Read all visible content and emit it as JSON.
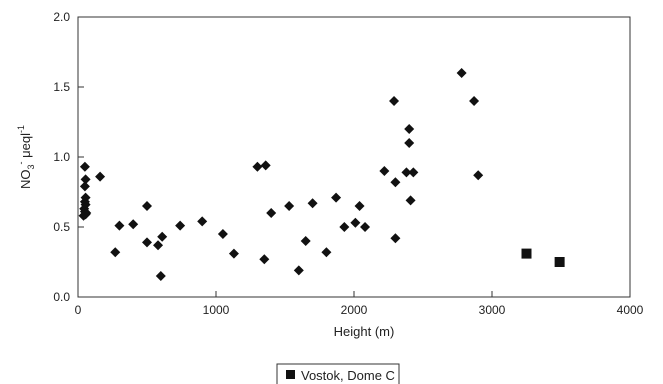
{
  "chart_data": {
    "type": "scatter",
    "xlabel": "Height (m)",
    "ylabel": "NO3- μeq l-1",
    "ylabel_parts": {
      "base": "NO",
      "sub": "3",
      "sup": "-",
      "unit": " μeql",
      "unit_sup": "-1"
    },
    "xlim": [
      0,
      4000
    ],
    "ylim": [
      0,
      2.0
    ],
    "xticks": [
      "0",
      "1000",
      "2000",
      "3000",
      "4000"
    ],
    "yticks": [
      "0.0",
      "0.5",
      "1.0",
      "1.5",
      "2.0"
    ],
    "grid": false,
    "legend_position": "bottom-center",
    "series": [
      {
        "marker": "diamond",
        "points": [
          [
            50,
            0.93
          ],
          [
            55,
            0.84
          ],
          [
            50,
            0.79
          ],
          [
            55,
            0.71
          ],
          [
            50,
            0.68
          ],
          [
            55,
            0.66
          ],
          [
            45,
            0.63
          ],
          [
            50,
            0.61
          ],
          [
            60,
            0.6
          ],
          [
            55,
            0.59
          ],
          [
            40,
            0.58
          ],
          [
            160,
            0.86
          ],
          [
            270,
            0.32
          ],
          [
            300,
            0.51
          ],
          [
            400,
            0.52
          ],
          [
            500,
            0.65
          ],
          [
            500,
            0.39
          ],
          [
            580,
            0.37
          ],
          [
            600,
            0.15
          ],
          [
            610,
            0.43
          ],
          [
            740,
            0.51
          ],
          [
            900,
            0.54
          ],
          [
            1050,
            0.45
          ],
          [
            1130,
            0.31
          ],
          [
            1300,
            0.93
          ],
          [
            1360,
            0.94
          ],
          [
            1350,
            0.27
          ],
          [
            1400,
            0.6
          ],
          [
            1530,
            0.65
          ],
          [
            1600,
            0.19
          ],
          [
            1650,
            0.4
          ],
          [
            1700,
            0.67
          ],
          [
            1800,
            0.32
          ],
          [
            1870,
            0.71
          ],
          [
            1930,
            0.5
          ],
          [
            2010,
            0.53
          ],
          [
            2040,
            0.65
          ],
          [
            2080,
            0.5
          ],
          [
            2220,
            0.9
          ],
          [
            2290,
            1.4
          ],
          [
            2300,
            0.82
          ],
          [
            2300,
            0.42
          ],
          [
            2380,
            0.89
          ],
          [
            2400,
            1.2
          ],
          [
            2400,
            1.1
          ],
          [
            2410,
            0.69
          ],
          [
            2430,
            0.89
          ],
          [
            2780,
            1.6
          ],
          [
            2870,
            1.4
          ],
          [
            2900,
            0.87
          ]
        ]
      },
      {
        "name": "Vostok, Dome C",
        "marker": "square",
        "points": [
          [
            3250,
            0.31
          ],
          [
            3490,
            0.25
          ]
        ]
      }
    ]
  }
}
